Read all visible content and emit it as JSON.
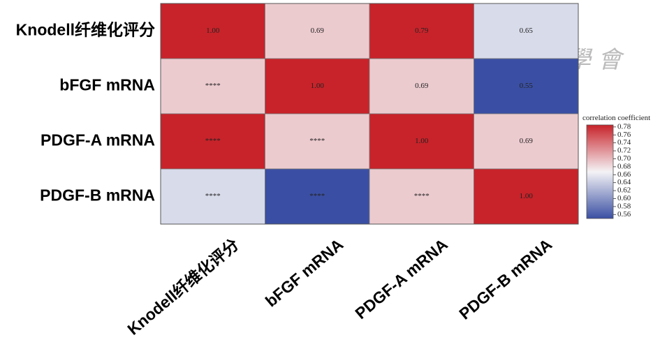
{
  "chart_data": {
    "type": "heatmap",
    "rows": [
      "Knodell纤维化评分",
      "bFGF mRNA",
      "PDGF-A mRNA",
      "PDGF-B mRNA"
    ],
    "columns": [
      "Knodell纤维化评分",
      "bFGF mRNA",
      "PDGF-A mRNA",
      "PDGF-B mRNA"
    ],
    "values": [
      [
        1.0,
        0.69,
        0.79,
        0.65
      ],
      [
        0.69,
        1.0,
        0.69,
        0.55
      ],
      [
        0.79,
        0.69,
        1.0,
        0.69
      ],
      [
        0.65,
        0.55,
        0.69,
        1.0
      ]
    ],
    "value_labels": [
      [
        "1.00",
        "0.69",
        "0.79",
        "0.65"
      ],
      [
        "****",
        "1.00",
        "0.69",
        "0.55"
      ],
      [
        "****",
        "****",
        "1.00",
        "0.69"
      ],
      [
        "****",
        "****",
        "****",
        "1.00"
      ]
    ],
    "colorbar_title": "correlation coefficient",
    "clim": [
      0.55,
      0.785
    ],
    "cticks": [
      0.56,
      0.58,
      {
        "value": 0.6,
        "label": "0.60"
      },
      0.62,
      0.64,
      0.66,
      0.68,
      {
        "value": 0.7,
        "label": "0.70"
      },
      0.72,
      0.74,
      0.76,
      0.78
    ],
    "colors": [
      "#3a4fa3",
      "#f4f3f6",
      "#c8232a"
    ],
    "watermark": "中華醫學會"
  }
}
